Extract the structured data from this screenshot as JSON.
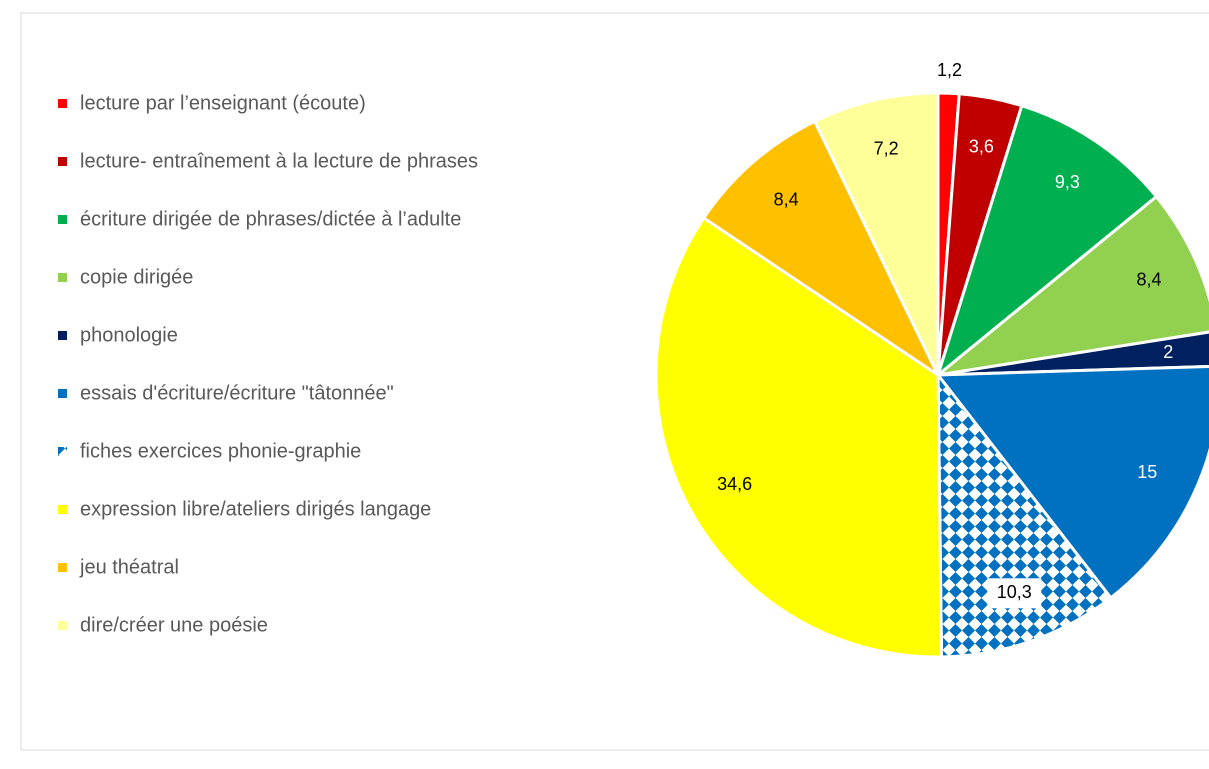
{
  "chart_data": {
    "type": "pie",
    "categories": [
      "lecture par l’enseignant (écoute)",
      "lecture- entraînement à la lecture  de phrases",
      "écriture dirigée de phrases/dictée à l’adulte",
      "copie dirigée",
      "phonologie",
      "essais d'écriture/écriture \"tâtonnée\"",
      "fiches exercices phonie-graphie",
      "expression libre/ateliers dirigés langage",
      "jeu théatral",
      "dire/créer une poésie"
    ],
    "values": [
      1.2,
      3.6,
      9.3,
      8.4,
      2,
      15,
      10.3,
      34.6,
      8.4,
      7.2
    ],
    "value_labels": [
      "1,2",
      "3,6",
      "9,3",
      "8,4",
      "2",
      "15",
      "10,3",
      "34,6",
      "8,4",
      "7,2"
    ],
    "colors": [
      "#ff0000",
      "#c00000",
      "#00b050",
      "#92d050",
      "#002060",
      "#0070c0",
      "#0070c0",
      "#ffff00",
      "#ffc000",
      "#ffff99"
    ],
    "patterns": [
      "solid",
      "solid",
      "solid",
      "solid",
      "solid",
      "solid",
      "diamond",
      "solid",
      "solid",
      "solid"
    ],
    "legend": "left"
  }
}
